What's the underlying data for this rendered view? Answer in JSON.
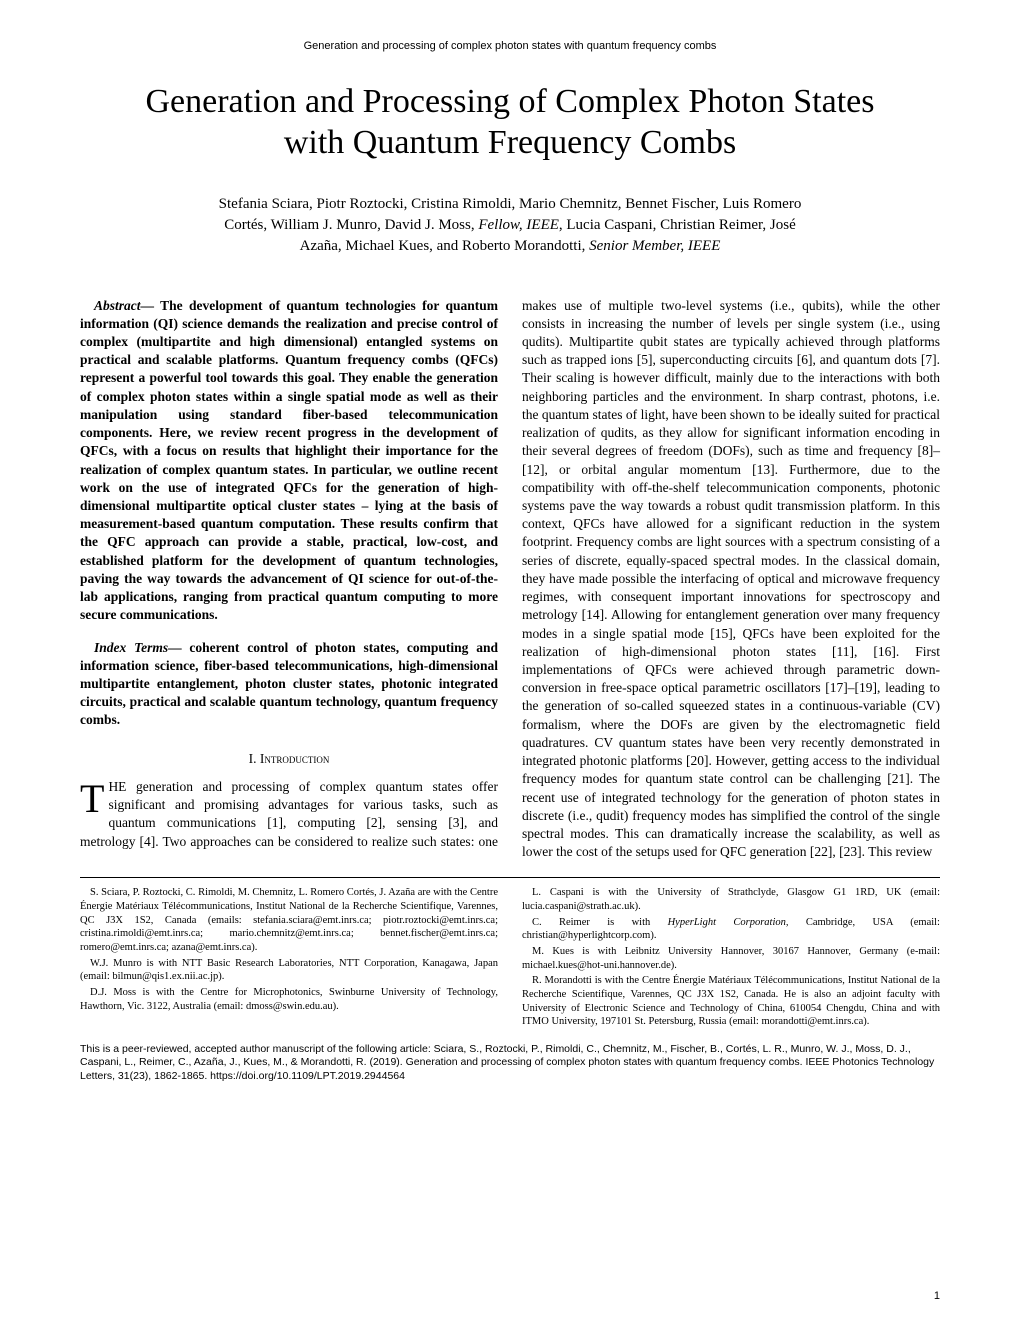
{
  "running_header": "Generation and processing of complex photon states with quantum frequency combs",
  "title": "Generation and Processing of Complex Photon States with Quantum Frequency Combs",
  "authors_line1": "Stefania Sciara, Piotr Roztocki, Cristina Rimoldi, Mario Chemnitz, Bennet Fischer, Luis Romero",
  "authors_line2a": "Cortés, William J. Munro, David J. Moss, ",
  "authors_fellow": "Fellow, IEEE",
  "authors_line2b": ", Lucia Caspani, Christian Reimer, José",
  "authors_line3a": "Azaña, Michael Kues, and Roberto Morandotti, ",
  "authors_senior": "Senior Member, IEEE",
  "abstract_label": "Abstract",
  "abstract_text": "— The development of quantum technologies for quantum information (QI) science demands the realization and precise control of complex (multipartite and high dimensional) entangled systems on practical and scalable platforms. Quantum frequency combs (QFCs) represent a powerful tool towards this goal. They enable the generation of complex photon states within a single spatial mode as well as their manipulation using standard fiber-based telecommunication components. Here, we review recent progress in the development of QFCs, with a focus on results that highlight their importance for the realization of complex quantum states. In particular, we outline recent work on the use of integrated QFCs for the generation of high-dimensional multipartite optical cluster states – lying at the basis of measurement-based quantum computation. These results confirm that the QFC approach can provide a stable, practical, low-cost, and established platform for the development of quantum technologies, paving the way towards the advancement of QI science for out-of-the-lab applications, ranging from practical quantum computing to more secure communications.",
  "index_label": "Index Terms",
  "index_text": "— coherent control of photon states, computing and information science, fiber-based telecommunications, high-dimensional multipartite entanglement, photon cluster states, photonic integrated circuits, practical and scalable quantum technology, quantum frequency combs.",
  "section1": "I.   Introduction",
  "dropcap": "T",
  "intro_text": "HE generation and processing of complex quantum states offer significant and promising advantages for various tasks, such as quantum communications [1], computing [2], sensing [3], and metrology [4]. Two approaches can be considered to realize such states: one makes use of multiple two-level systems (i.e., qubits), while the other consists in increasing the number of levels per single system (i.e., using qudits). Multipartite qubit states are typically achieved through platforms such as trapped ions [5], superconducting circuits [6], and quantum dots [7]. Their scaling is however difficult, mainly due to the interactions with both neighboring particles and the environment. In sharp contrast, photons, i.e. the quantum states of light, have been shown to be ideally suited for practical realization of qudits, as they allow for significant information encoding in their several degrees of freedom (DOFs), such as time and frequency [8]–[12], or orbital angular momentum [13]. Furthermore, due to the compatibility with off-the-shelf telecommunication components, photonic systems pave the way towards a robust qudit transmission platform. In this context, QFCs have allowed for a significant reduction in the system footprint. Frequency combs are light sources with a spectrum consisting of a series of discrete, equally-spaced spectral modes. In the classical domain, they have made possible the interfacing of optical and microwave frequency regimes, with consequent important innovations for spectroscopy and metrology [14]. Allowing for entanglement generation over many frequency modes in a single spatial mode [15], QFCs have been exploited for the realization of high-dimensional photon states [11], [16]. First implementations of QFCs were achieved through parametric down-conversion in free-space optical parametric oscillators [17]–[19], leading to the generation of so-called squeezed states in a continuous-variable (CV) formalism, where the DOFs are given by the electromagnetic field quadratures. CV quantum states have been very recently demonstrated in integrated photonic platforms [20]. However, getting access to the individual frequency modes for quantum state control can be challenging [21]. The recent use of integrated technology for the generation of photon states in discrete (i.e., qudit) frequency modes has simplified the control of the single spectral modes. This can dramatically increase the scalability, as well as lower the cost of the setups used for QFC generation [22], [23]. This review",
  "aff1": "S. Sciara, P. Roztocki, C. Rimoldi, M. Chemnitz, L. Romero Cortés, J. Azaña are with the Centre Énergie Matériaux Télécommunications, Institut National de la Recherche Scientifique, Varennes, QC J3X 1S2, Canada (emails: stefania.sciara@emt.inrs.ca; piotr.roztocki@emt.inrs.ca; cristina.rimoldi@emt.inrs.ca; mario.chemnitz@emt.inrs.ca; bennet.fischer@emt.inrs.ca; romero@emt.inrs.ca; azana@emt.inrs.ca).",
  "aff2": "W.J. Munro is with NTT Basic Research Laboratories, NTT Corporation, Kanagawa, Japan (email: bilmun@qis1.ex.nii.ac.jp).",
  "aff3": "D.J. Moss is with the Centre for Microphotonics, Swinburne University of Technology, Hawthorn, Vic. 3122, Australia (email: dmoss@swin.edu.au).",
  "aff4": "L. Caspani is with the University of Strathclyde, Glasgow G1 1RD, UK (email: lucia.caspani@strath.ac.uk).",
  "aff5a": "C. Reimer is with ",
  "aff5_ital": "HyperLight Corporation,",
  "aff5b": " Cambridge, USA (email: christian@hyperlightcorp.com).",
  "aff6": "M. Kues is with Leibnitz University Hannover, 30167 Hannover, Germany (e-mail: michael.kues@hot-uni.hannover.de).",
  "aff7": "R. Morandotti is with the Centre Énergie Matériaux Télécommunications, Institut National de la Recherche Scientifique, Varennes, QC J3X 1S2, Canada. He is also an adjoint faculty with University of Electronic Science and Technology of China, 610054 Chengdu, China and with ITMO University, 197101 St. Petersburg, Russia (email: morandotti@emt.inrs.ca).",
  "footer_note": "This is a peer-reviewed, accepted author manuscript of the following article: Sciara, S., Roztocki, P., Rimoldi, C., Chemnitz, M., Fischer, B., Cortés, L. R., Munro, W. J., Moss, D. J., Caspani, L., Reimer, C., Azaña, J., Kues, M., & Morandotti, R. (2019). Generation and processing of complex photon states with quantum frequency combs. IEEE Photonics Technology Letters, 31(23), 1862-1865. https://doi.org/10.1109/LPT.2019.2944564",
  "page_num": "1"
}
